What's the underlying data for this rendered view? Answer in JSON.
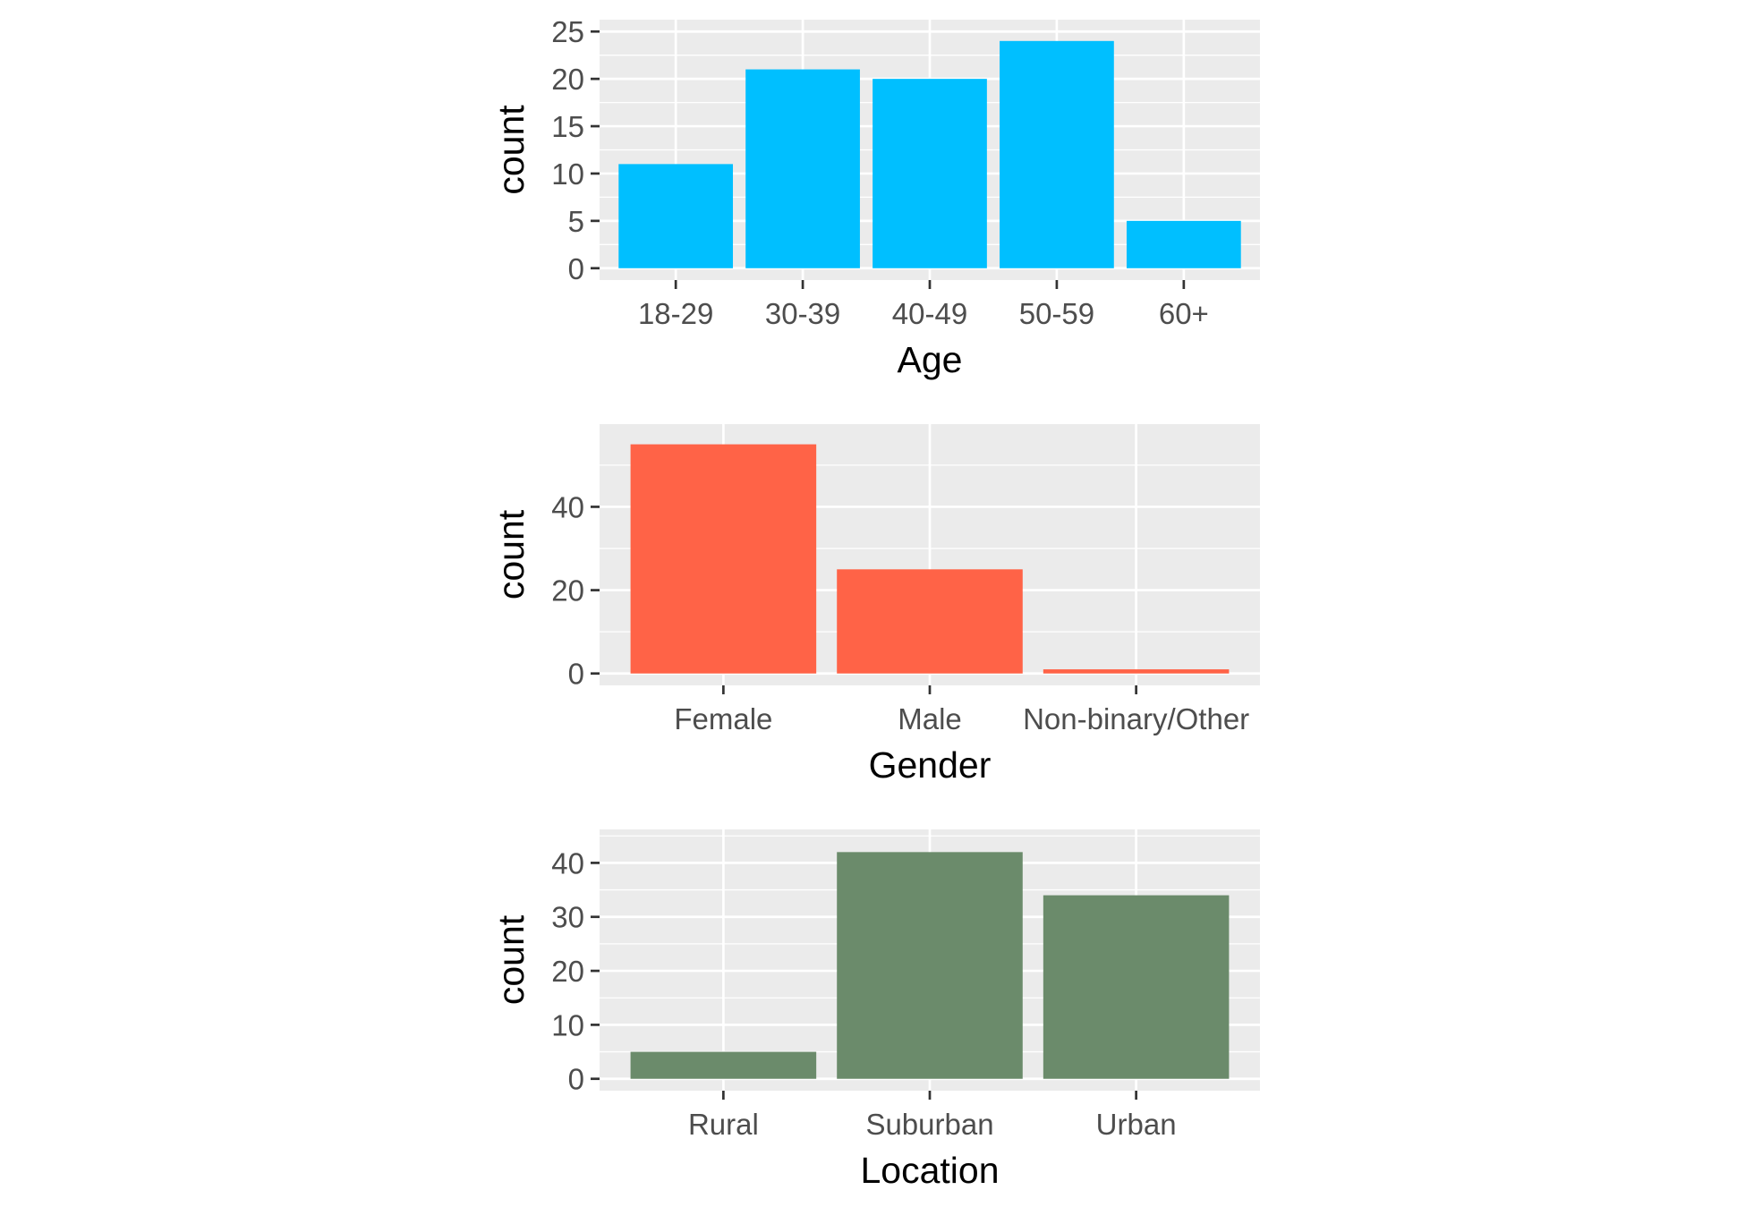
{
  "chart_data": [
    {
      "type": "bar",
      "title": "",
      "xlabel": "Age",
      "ylabel": "count",
      "categories": [
        "18-29",
        "30-39",
        "40-49",
        "50-59",
        "60+"
      ],
      "values": [
        11,
        21,
        20,
        24,
        5
      ],
      "ylim": [
        0,
        25
      ],
      "yticks": [
        0,
        5,
        10,
        15,
        20,
        25
      ],
      "bar_color": "#00BFFF",
      "grid": true,
      "legend": "none"
    },
    {
      "type": "bar",
      "title": "",
      "xlabel": "Gender",
      "ylabel": "count",
      "categories": [
        "Female",
        "Male",
        "Non-binary/Other"
      ],
      "values": [
        55,
        25,
        1
      ],
      "ylim": [
        0,
        57
      ],
      "yticks": [
        0,
        20,
        40
      ],
      "bar_color": "#FF6347",
      "grid": true,
      "legend": "none"
    },
    {
      "type": "bar",
      "title": "",
      "xlabel": "Location",
      "ylabel": "count",
      "categories": [
        "Rural",
        "Suburban",
        "Urban"
      ],
      "values": [
        5,
        42,
        34
      ],
      "ylim": [
        0,
        44
      ],
      "yticks": [
        0,
        10,
        20,
        30,
        40
      ],
      "bar_color": "#6B8B6B",
      "grid": true,
      "legend": "none"
    }
  ],
  "theme": {
    "panel_background": "#EBEBEB",
    "grid_color": "#FFFFFF",
    "tick_color": "#333333"
  }
}
